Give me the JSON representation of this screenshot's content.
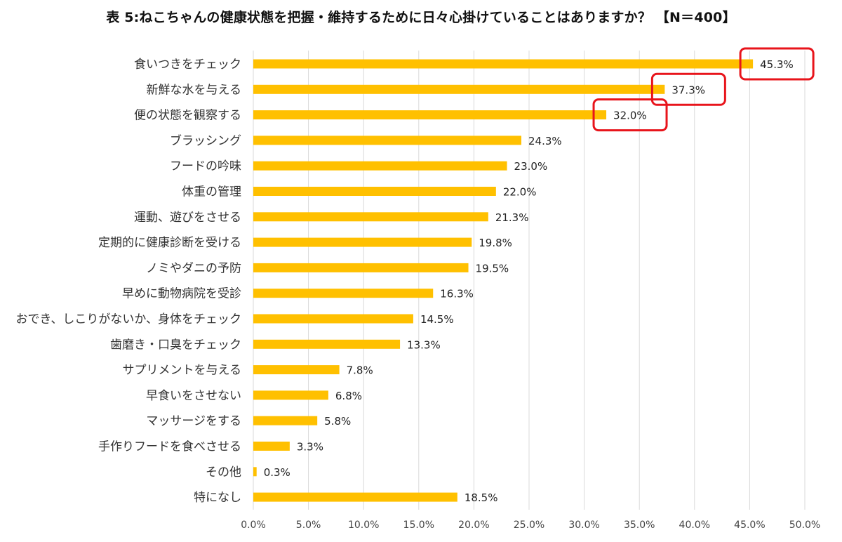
{
  "chart_data": {
    "type": "bar",
    "orientation": "horizontal",
    "title": "表 5:ねこちゃんの健康状態を把握・維持するために日々心掛けていることはありますか？ 【N＝400】",
    "categories": [
      "食いつきをチェック",
      "新鮮な水を与える",
      "便の状態を観察する",
      "ブラッシング",
      "フードの吟味",
      "体重の管理",
      "運動、遊びをさせる",
      "定期的に健康診断を受ける",
      "ノミやダニの予防",
      "早めに動物病院を受診",
      "おでき、しこりがないか、身体をチェック",
      "歯磨き・口臭をチェック",
      "サプリメントを与える",
      "早食いをさせない",
      "マッサージをする",
      "手作りフードを食べさせる",
      "その他",
      "特になし"
    ],
    "values": [
      45.3,
      37.3,
      32.0,
      24.3,
      23.0,
      22.0,
      21.3,
      19.8,
      19.5,
      16.3,
      14.5,
      13.3,
      7.8,
      6.8,
      5.8,
      3.3,
      0.3,
      18.5
    ],
    "value_labels": [
      "45.3%",
      "37.3%",
      "32.0%",
      "24.3%",
      "23.0%",
      "22.0%",
      "21.3%",
      "19.8%",
      "19.5%",
      "16.3%",
      "14.5%",
      "13.3%",
      "7.8%",
      "6.8%",
      "5.8%",
      "3.3%",
      "0.3%",
      "18.5%"
    ],
    "xlim": [
      0,
      50
    ],
    "x_ticks": [
      0,
      5,
      10,
      15,
      20,
      25,
      30,
      35,
      40,
      45,
      50
    ],
    "x_tick_labels": [
      "0.0%",
      "5.0%",
      "10.0%",
      "15.0%",
      "20.0%",
      "25.0%",
      "30.0%",
      "35.0%",
      "40.0%",
      "45.0%",
      "50.0%"
    ],
    "grid": true,
    "legend": "none",
    "highlighted": [
      0,
      1,
      2
    ],
    "colors": {
      "bar": "#FFC000",
      "grid": "#D9D9D9",
      "highlight": "#E8141B"
    }
  }
}
